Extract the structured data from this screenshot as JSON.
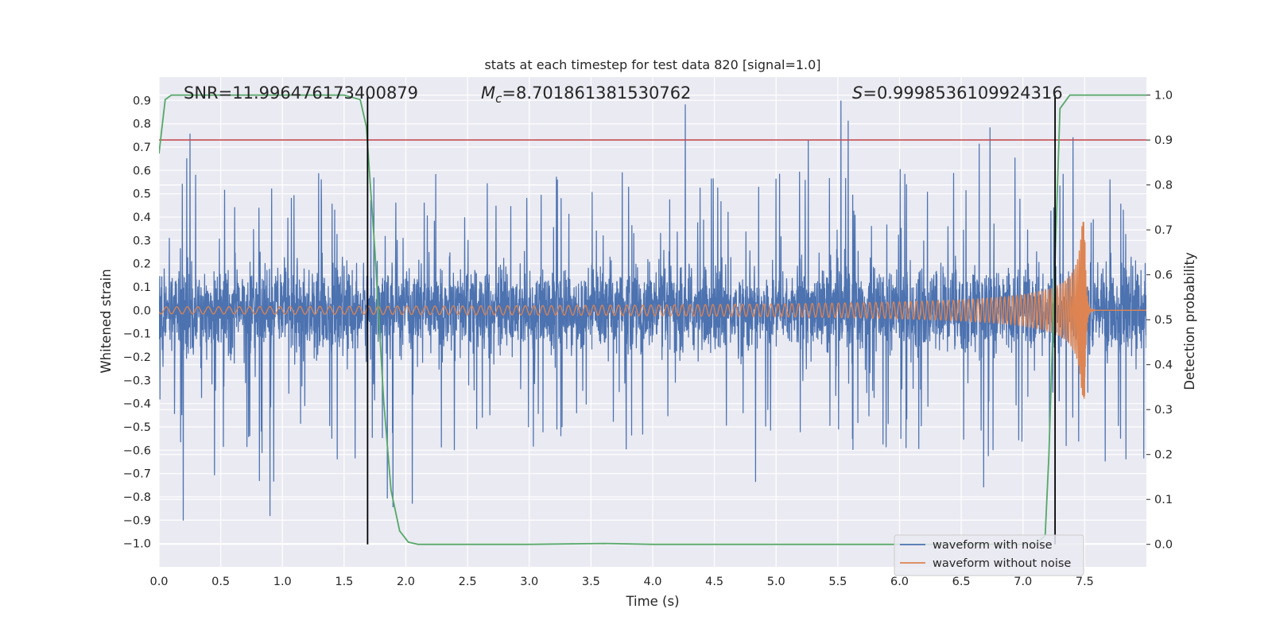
{
  "chart_data": {
    "type": "line",
    "title": "stats at each timestep for test data 820 [signal=1.0]",
    "xlabel": "Time (s)",
    "ylabel": "Whitened strain",
    "ylabel_right": "Detection probability",
    "xlim": [
      0.0,
      8.0
    ],
    "ylim_left": [
      -1.1,
      1.0
    ],
    "ylim_right": [
      -0.05,
      1.04
    ],
    "x_ticks": [
      "0.0",
      "0.5",
      "1.0",
      "1.5",
      "2.0",
      "2.5",
      "3.0",
      "3.5",
      "4.0",
      "4.5",
      "5.0",
      "5.5",
      "6.0",
      "6.5",
      "7.0",
      "7.5"
    ],
    "y_ticks_left": [
      "0.9",
      "0.8",
      "0.7",
      "0.6",
      "0.5",
      "0.4",
      "0.3",
      "0.2",
      "0.1",
      "0.0",
      "−0.1",
      "−0.2",
      "−0.3",
      "−0.4",
      "−0.5",
      "−0.6",
      "−0.7",
      "−0.8",
      "−0.9",
      "−1.0"
    ],
    "y_ticks_right": [
      "1.0",
      "0.9",
      "0.8",
      "0.7",
      "0.6",
      "0.5",
      "0.4",
      "0.3",
      "0.2",
      "0.1",
      "0.0"
    ],
    "grid": true,
    "legend_location": "lower-right",
    "annotations": {
      "snr": "SNR=11.996476173400879",
      "mc_symbol": "M",
      "mc_sub": "c",
      "mc_value": "=8.701861381530762",
      "s_symbol": "S",
      "s_value": "=0.9998536109924316"
    },
    "series": [
      {
        "name": "waveform with noise",
        "color": "#4c72b0",
        "axis": "left",
        "style": "dense noise, spikes up to about ±0.9"
      },
      {
        "name": "waveform without noise",
        "color": "#dd8452",
        "axis": "left",
        "style": "chirp, growing to peak amplitude ≈0.38 at t≈7.5 s then ringdown"
      },
      {
        "name": "",
        "color": "#55a868",
        "axis": "right",
        "x": [
          0.0,
          0.05,
          0.1,
          0.2,
          0.5,
          1.0,
          1.5,
          1.63,
          1.68,
          1.75,
          1.82,
          1.88,
          1.95,
          2.02,
          2.1,
          3.0,
          3.6,
          4.0,
          5.0,
          6.0,
          6.8,
          7.1,
          7.18,
          7.21,
          7.25,
          7.3,
          7.38,
          7.5,
          8.0
        ],
        "y": [
          0.87,
          0.99,
          1.0,
          1.0,
          1.0,
          1.0,
          1.0,
          0.99,
          0.93,
          0.65,
          0.32,
          0.12,
          0.03,
          0.005,
          0.0,
          0.0,
          0.002,
          0.0,
          0.0,
          0.0,
          0.0,
          0.0,
          0.02,
          0.2,
          0.55,
          0.97,
          1.0,
          1.0,
          1.0
        ]
      },
      {
        "name": "",
        "color": "#c44e52",
        "axis": "right",
        "constant_y": 0.9,
        "style": "threshold line"
      }
    ],
    "vertical_lines": [
      {
        "x": 1.69,
        "color": "#000000"
      },
      {
        "x": 7.26,
        "color": "#000000"
      }
    ],
    "chirp": {
      "t_start": 0.0,
      "t_coalesce": 7.5,
      "start_amplitude": 0.015,
      "peak_amplitude": 0.38,
      "post_merger_level": 0.0
    },
    "noise": {
      "baseline_sigma": 0.09,
      "max_spike": 0.9
    }
  }
}
